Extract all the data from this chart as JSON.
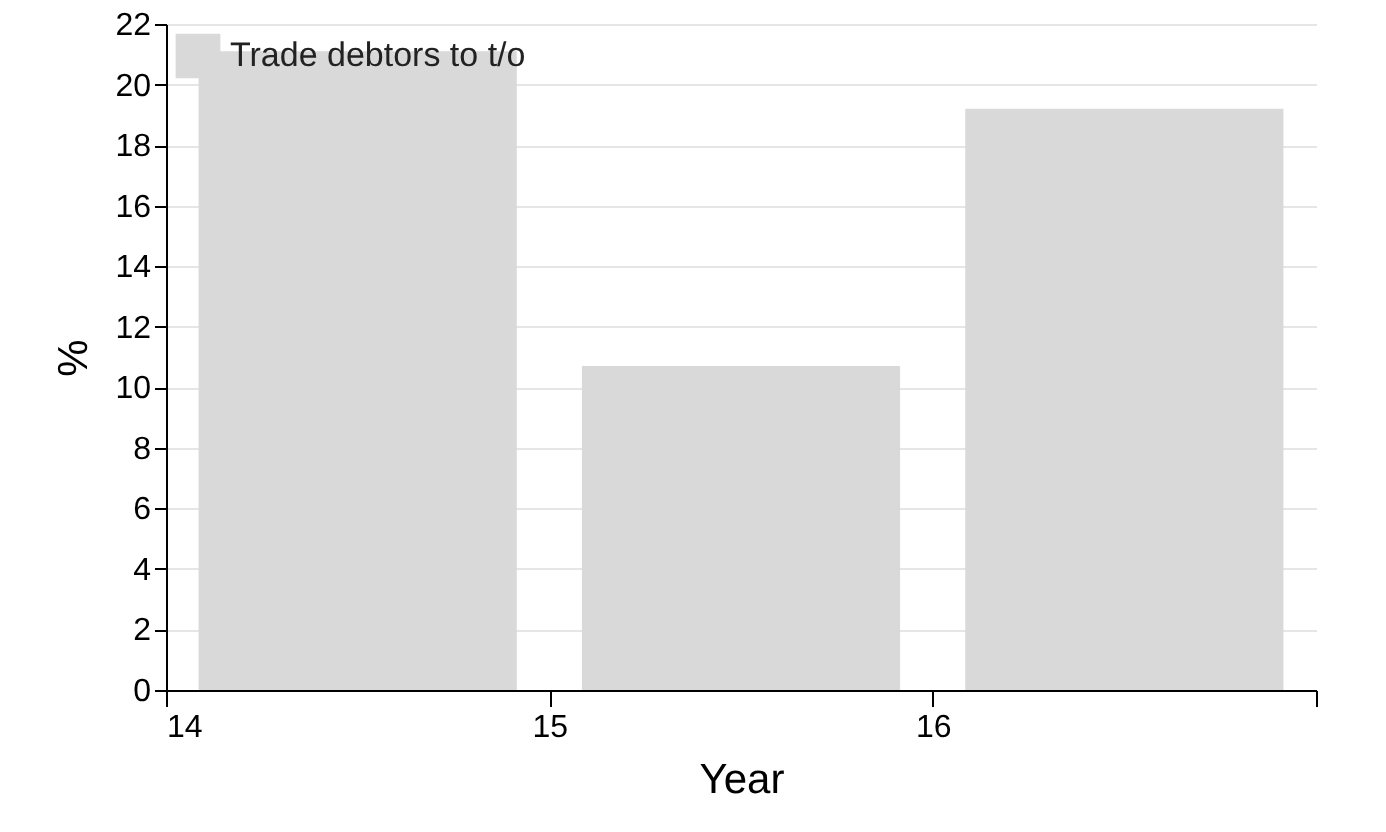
{
  "chart_data": {
    "type": "bar",
    "xlabel": "Year",
    "ylabel": "%",
    "x": [
      14.5,
      15.5,
      16.5
    ],
    "series": [
      {
        "name": "Trade debtors to t/o",
        "color": "#d9d9da",
        "values": [
          21.1,
          10.7,
          19.2
        ]
      }
    ],
    "xlim": [
      14,
      17
    ],
    "xticks": [
      14,
      15,
      16,
      {
        "value": 17,
        "label": null
      }
    ],
    "ylim": [
      0,
      22
    ],
    "yticks": [
      0,
      2,
      4,
      6,
      8,
      10,
      12,
      14,
      16,
      18,
      20,
      22
    ],
    "grid": "y",
    "legend": "top left"
  }
}
